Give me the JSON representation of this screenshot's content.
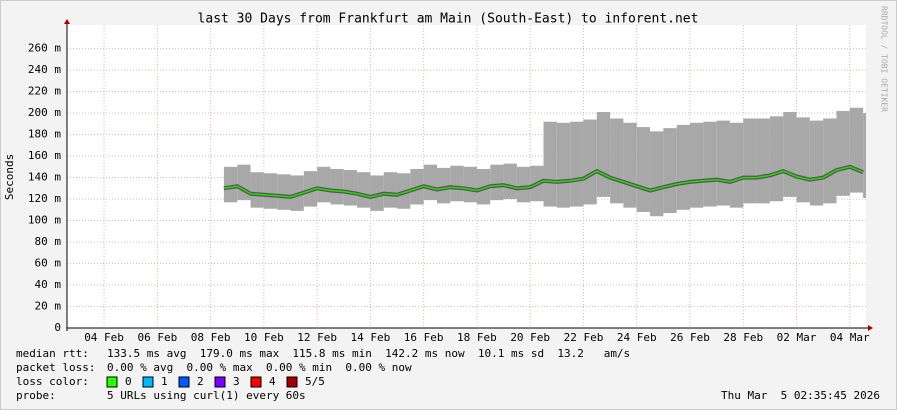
{
  "chart_data": {
    "type": "smoke",
    "title": "last 30 Days from Frankfurt am Main (South-East) to inforent.net",
    "y_label": "Seconds",
    "watermark": "RRDTOOL / TOBI OETIKER",
    "xlim": [
      "2026-02-03T02:35:45",
      "2026-03-05T02:35:45"
    ],
    "xticks": [
      {
        "value": "2026-02-04T12:00",
        "label": "04 Feb"
      },
      {
        "value": "2026-02-06T12:00",
        "label": "06 Feb"
      },
      {
        "value": "2026-02-08T12:00",
        "label": "08 Feb"
      },
      {
        "value": "2026-02-10T12:00",
        "label": "10 Feb"
      },
      {
        "value": "2026-02-12T12:00",
        "label": "12 Feb"
      },
      {
        "value": "2026-02-14T12:00",
        "label": "14 Feb"
      },
      {
        "value": "2026-02-16T12:00",
        "label": "16 Feb"
      },
      {
        "value": "2026-02-18T12:00",
        "label": "18 Feb"
      },
      {
        "value": "2026-02-20T12:00",
        "label": "20 Feb"
      },
      {
        "value": "2026-02-22T12:00",
        "label": "22 Feb"
      },
      {
        "value": "2026-02-24T12:00",
        "label": "24 Feb"
      },
      {
        "value": "2026-02-26T12:00",
        "label": "26 Feb"
      },
      {
        "value": "2026-02-28T12:00",
        "label": "28 Feb"
      },
      {
        "value": "2026-03-02T12:00",
        "label": "02 Mar"
      },
      {
        "value": "2026-03-04T12:00",
        "label": "04 Mar"
      }
    ],
    "ylim": [
      0,
      0.282
    ],
    "yticks": [
      0,
      {
        "value": 0.02,
        "label": "20 m"
      },
      {
        "value": 0.04,
        "label": "40 m"
      },
      {
        "value": 0.06,
        "label": "60 m"
      },
      {
        "value": 0.08,
        "label": "80 m"
      },
      {
        "value": 0.1,
        "label": "100 m"
      },
      {
        "value": 0.12,
        "label": "120 m"
      },
      {
        "value": 0.14,
        "label": "140 m"
      },
      {
        "value": 0.16,
        "label": "160 m"
      },
      {
        "value": 0.18,
        "label": "180 m"
      },
      {
        "value": 0.2,
        "label": "200 m"
      },
      {
        "value": 0.22,
        "label": "220 m"
      },
      {
        "value": 0.24,
        "label": "240 m"
      },
      {
        "value": 0.26,
        "label": "260 m"
      }
    ],
    "grid": true,
    "median_color": "#22dd00",
    "smoke_color": "#a8a8a8",
    "x": [
      "2026-02-09T00:00",
      "2026-02-09T12:00",
      "2026-02-10T00:00",
      "2026-02-10T12:00",
      "2026-02-11T00:00",
      "2026-02-11T12:00",
      "2026-02-12T00:00",
      "2026-02-12T12:00",
      "2026-02-13T00:00",
      "2026-02-13T12:00",
      "2026-02-14T00:00",
      "2026-02-14T12:00",
      "2026-02-15T00:00",
      "2026-02-15T12:00",
      "2026-02-16T00:00",
      "2026-02-16T12:00",
      "2026-02-17T00:00",
      "2026-02-17T12:00",
      "2026-02-18T00:00",
      "2026-02-18T12:00",
      "2026-02-19T00:00",
      "2026-02-19T12:00",
      "2026-02-20T00:00",
      "2026-02-20T12:00",
      "2026-02-21T00:00",
      "2026-02-21T12:00",
      "2026-02-22T00:00",
      "2026-02-22T12:00",
      "2026-02-23T00:00",
      "2026-02-23T12:00",
      "2026-02-24T00:00",
      "2026-02-24T12:00",
      "2026-02-25T00:00",
      "2026-02-25T12:00",
      "2026-02-26T00:00",
      "2026-02-26T12:00",
      "2026-02-27T00:00",
      "2026-02-27T12:00",
      "2026-02-28T00:00",
      "2026-02-28T12:00",
      "2026-03-01T00:00",
      "2026-03-01T12:00",
      "2026-03-02T00:00",
      "2026-03-02T12:00",
      "2026-03-03T00:00",
      "2026-03-03T12:00",
      "2026-03-04T00:00",
      "2026-03-04T12:00",
      "2026-03-05T00:00"
    ],
    "median": [
      0.13,
      0.132,
      0.125,
      0.124,
      0.123,
      0.122,
      0.126,
      0.13,
      0.128,
      0.127,
      0.125,
      0.122,
      0.125,
      0.124,
      0.128,
      0.132,
      0.129,
      0.131,
      0.13,
      0.128,
      0.132,
      0.133,
      0.13,
      0.131,
      0.137,
      0.136,
      0.137,
      0.139,
      0.146,
      0.14,
      0.136,
      0.132,
      0.128,
      0.131,
      0.134,
      0.136,
      0.137,
      0.138,
      0.136,
      0.14,
      0.14,
      0.142,
      0.146,
      0.141,
      0.138,
      0.14,
      0.147,
      0.15,
      0.145
    ],
    "smoke_low": [
      0.117,
      0.119,
      0.112,
      0.111,
      0.11,
      0.109,
      0.113,
      0.117,
      0.115,
      0.114,
      0.112,
      0.109,
      0.112,
      0.111,
      0.115,
      0.119,
      0.116,
      0.118,
      0.117,
      0.115,
      0.119,
      0.12,
      0.117,
      0.118,
      0.113,
      0.112,
      0.113,
      0.115,
      0.122,
      0.116,
      0.112,
      0.108,
      0.104,
      0.107,
      0.11,
      0.112,
      0.113,
      0.114,
      0.112,
      0.116,
      0.116,
      0.118,
      0.122,
      0.117,
      0.114,
      0.116,
      0.123,
      0.126,
      0.121
    ],
    "smoke_high": [
      0.15,
      0.152,
      0.145,
      0.144,
      0.143,
      0.142,
      0.146,
      0.15,
      0.148,
      0.147,
      0.145,
      0.142,
      0.145,
      0.144,
      0.148,
      0.152,
      0.149,
      0.151,
      0.15,
      0.148,
      0.152,
      0.153,
      0.15,
      0.151,
      0.192,
      0.191,
      0.192,
      0.194,
      0.201,
      0.195,
      0.191,
      0.187,
      0.183,
      0.186,
      0.189,
      0.191,
      0.192,
      0.193,
      0.191,
      0.195,
      0.195,
      0.197,
      0.201,
      0.196,
      0.193,
      0.195,
      0.202,
      0.205,
      0.2
    ]
  },
  "stats": {
    "median_rtt": {
      "label": "median rtt:",
      "text": "133.5 ms avg  179.0 ms max  115.8 ms min  142.2 ms now  10.1 ms sd  13.2   am/s"
    },
    "packet_loss": {
      "label": "packet loss:",
      "text": "0.00 % avg  0.00 % max  0.00 % min  0.00 % now"
    },
    "loss_color": {
      "label": "loss color:",
      "items": [
        {
          "label": "0",
          "color": "#26ff00"
        },
        {
          "label": "1",
          "color": "#00b8ff"
        },
        {
          "label": "2",
          "color": "#0059ff"
        },
        {
          "label": "3",
          "color": "#7e00ff"
        },
        {
          "label": "4",
          "color": "#ff0000"
        },
        {
          "label": "5/5",
          "color": "#a10000"
        }
      ]
    },
    "probe": {
      "label": "probe:",
      "text": "5 URLs using curl(1) every 60s"
    },
    "timestamp": "Thu Mar  5 02:35:45 2026"
  }
}
